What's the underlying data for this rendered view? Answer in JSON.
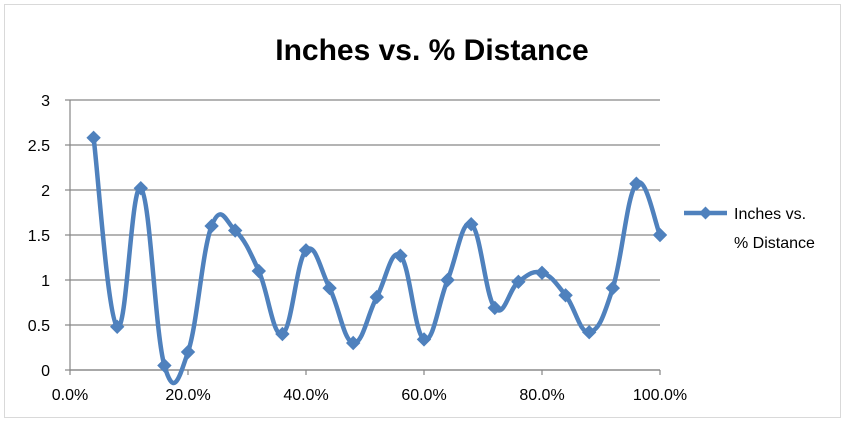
{
  "chart_data": {
    "type": "line",
    "title": "Inches vs. % Distance",
    "xlabel": "",
    "ylabel": "",
    "x": [
      0.04,
      0.08,
      0.12,
      0.16,
      0.2,
      0.24,
      0.28,
      0.32,
      0.36,
      0.4,
      0.44,
      0.48,
      0.52,
      0.56,
      0.6,
      0.64,
      0.68,
      0.72,
      0.76,
      0.8,
      0.84,
      0.88,
      0.92,
      0.96,
      1.0
    ],
    "series": [
      {
        "name": "Inches vs. % Distance",
        "values": [
          2.58,
          0.48,
          2.02,
          0.05,
          0.2,
          1.6,
          1.55,
          1.1,
          0.4,
          1.33,
          0.91,
          0.3,
          0.81,
          1.27,
          0.34,
          1.0,
          1.62,
          0.69,
          0.98,
          1.08,
          0.83,
          0.42,
          0.91,
          2.07,
          1.5
        ],
        "color": "#4f81bd",
        "marker": "diamond",
        "smoothed": true
      }
    ],
    "xlim": [
      0,
      1
    ],
    "ylim": [
      0,
      3
    ],
    "xticks": [
      0,
      0.2,
      0.4,
      0.6,
      0.8,
      1.0
    ],
    "xtick_labels": [
      "0.0%",
      "20.0%",
      "40.0%",
      "60.0%",
      "80.0%",
      "100.0%"
    ],
    "yticks": [
      0,
      0.5,
      1,
      1.5,
      2,
      2.5,
      3
    ],
    "ytick_labels": [
      "0",
      "0.5",
      "1",
      "1.5",
      "2",
      "2.5",
      "3"
    ],
    "grid": "horizontal",
    "legend": {
      "position": "right",
      "label_lines": [
        "Inches vs.",
        "% Distance"
      ]
    },
    "colors": {
      "series": "#4f81bd",
      "grid": "#868686",
      "axis": "#868686"
    }
  }
}
